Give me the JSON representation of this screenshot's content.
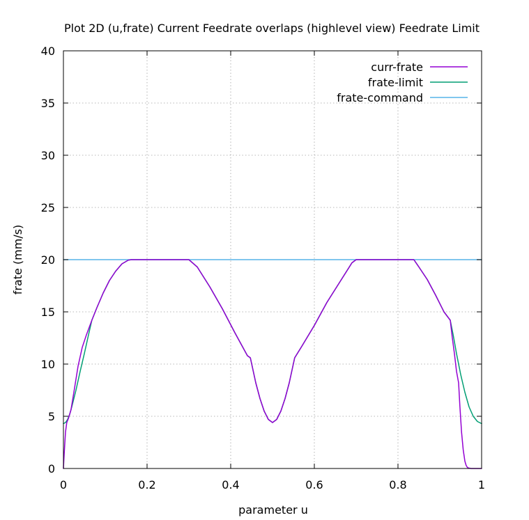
{
  "chart_data": {
    "type": "line",
    "title": "Plot 2D (u,frate) Current Feedrate overlaps (highlevel view) Feedrate Limit",
    "xlabel": "parameter u",
    "ylabel": "frate (mm/s)",
    "xlim": [
      0,
      1
    ],
    "ylim": [
      0,
      40
    ],
    "xticks": [
      0,
      0.2,
      0.4,
      0.6,
      0.8,
      1
    ],
    "xtick_labels": [
      "0",
      "0.2",
      "0.4",
      "0.6",
      "0.8",
      "1"
    ],
    "yticks": [
      0,
      5,
      10,
      15,
      20,
      25,
      30,
      35,
      40
    ],
    "ytick_labels": [
      "0",
      "5",
      "10",
      "15",
      "20",
      "25",
      "30",
      "35",
      "40"
    ],
    "grid": true,
    "legend_position": "top-right",
    "series": [
      {
        "name": "curr-frate",
        "color": "#9400d3",
        "x": [
          0,
          0.001,
          0.003,
          0.005,
          0.008,
          0.012,
          0.018,
          0.025,
          0.035,
          0.045,
          0.055,
          0.068,
          0.08,
          0.095,
          0.11,
          0.125,
          0.14,
          0.155,
          0.162,
          0.2,
          0.25,
          0.3,
          0.32,
          0.35,
          0.38,
          0.41,
          0.44,
          0.447,
          0.46,
          0.47,
          0.48,
          0.49,
          0.5,
          0.51,
          0.52,
          0.53,
          0.54,
          0.553,
          0.57,
          0.6,
          0.63,
          0.66,
          0.69,
          0.7,
          0.75,
          0.8,
          0.838,
          0.85,
          0.87,
          0.89,
          0.91,
          0.925,
          0.93,
          0.935,
          0.94,
          0.945,
          0.948,
          0.952,
          0.956,
          0.96,
          0.963,
          0.966,
          0.97,
          0.975,
          0.98,
          0.99,
          1.0
        ],
        "y": [
          0,
          0.8,
          2.2,
          3.5,
          4.4,
          4.8,
          5.6,
          7.3,
          9.8,
          11.6,
          12.8,
          14.2,
          15.4,
          16.8,
          18.0,
          18.9,
          19.6,
          19.95,
          20,
          20,
          20,
          20,
          19.3,
          17.4,
          15.3,
          13.0,
          10.8,
          10.6,
          8.2,
          6.7,
          5.5,
          4.7,
          4.4,
          4.7,
          5.5,
          6.7,
          8.2,
          10.6,
          11.7,
          13.7,
          15.9,
          17.8,
          19.7,
          20,
          20,
          20,
          20,
          19.3,
          18.1,
          16.6,
          15.0,
          14.2,
          12.5,
          11.0,
          9.3,
          8.2,
          6.0,
          3.5,
          1.8,
          0.7,
          0.3,
          0.1,
          0.03,
          0,
          0,
          0,
          0
        ]
      },
      {
        "name": "frate-limit",
        "color": "#009e73",
        "x": [
          0,
          0.005,
          0.01,
          0.015,
          0.02,
          0.03,
          0.04,
          0.05,
          0.06,
          0.068,
          0.08,
          0.095,
          0.11,
          0.125,
          0.14,
          0.155,
          0.162,
          0.2,
          0.25,
          0.3,
          0.32,
          0.35,
          0.38,
          0.41,
          0.44,
          0.447,
          0.46,
          0.47,
          0.48,
          0.49,
          0.5,
          0.51,
          0.52,
          0.53,
          0.54,
          0.553,
          0.57,
          0.6,
          0.63,
          0.66,
          0.69,
          0.7,
          0.75,
          0.8,
          0.838,
          0.85,
          0.87,
          0.89,
          0.91,
          0.925,
          0.932,
          0.94,
          0.95,
          0.96,
          0.97,
          0.98,
          0.99,
          1.0
        ],
        "y": [
          4.3,
          4.4,
          4.7,
          5.2,
          5.9,
          7.5,
          9.3,
          11.0,
          12.8,
          14.2,
          15.4,
          16.8,
          18.0,
          18.9,
          19.6,
          19.95,
          20,
          20,
          20,
          20,
          19.3,
          17.4,
          15.3,
          13.0,
          10.8,
          10.6,
          8.2,
          6.7,
          5.5,
          4.7,
          4.4,
          4.7,
          5.5,
          6.7,
          8.2,
          10.6,
          11.7,
          13.7,
          15.9,
          17.8,
          19.7,
          20,
          20,
          20,
          20,
          19.3,
          18.1,
          16.6,
          15.0,
          14.2,
          12.8,
          11.0,
          9.0,
          7.3,
          5.9,
          5.0,
          4.5,
          4.3
        ]
      },
      {
        "name": "frate-command",
        "color": "#56b4e9",
        "x": [
          0,
          1
        ],
        "y": [
          20,
          20
        ]
      }
    ]
  }
}
